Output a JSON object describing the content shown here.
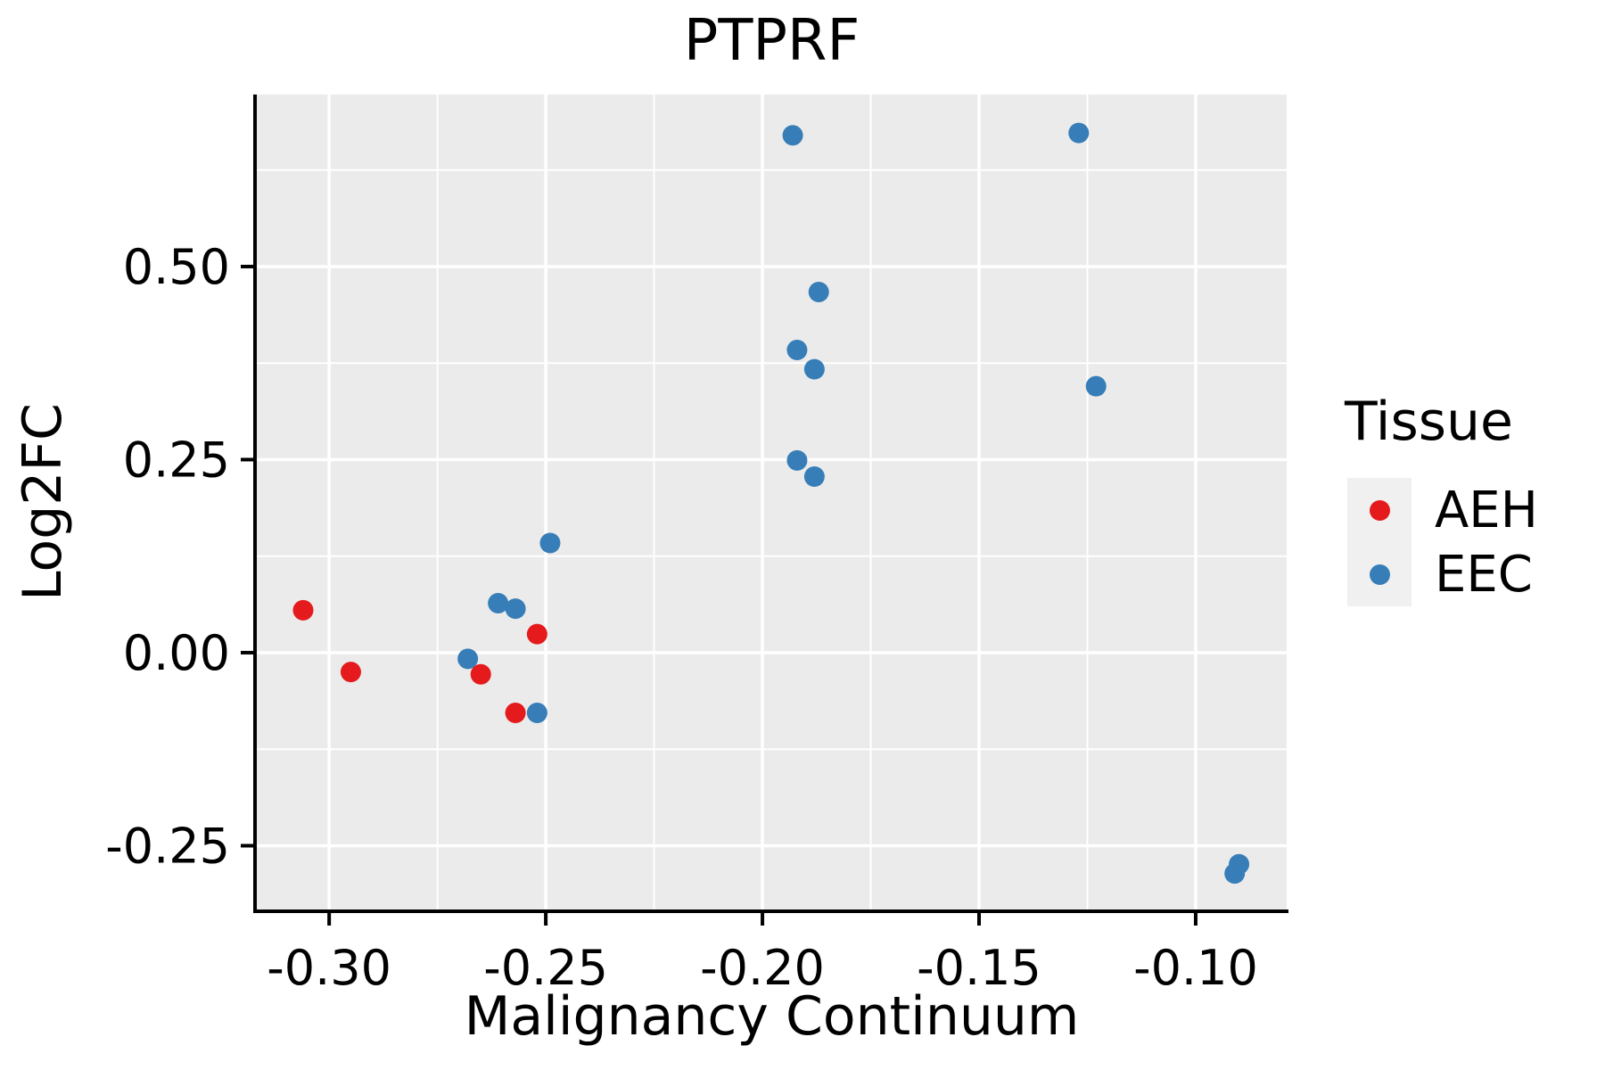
{
  "chart_data": {
    "type": "scatter",
    "title": "PTPRF",
    "xlabel": "Malignancy Continuum",
    "ylabel": "Log2FC",
    "xlim": [
      -0.3167,
      -0.079
    ],
    "ylim": [
      -0.3326,
      0.7228
    ],
    "grid": true,
    "panel_bg": "#EBEBEB",
    "grid_color": "#FFFFFF",
    "axis_color": "#000000",
    "x_ticks": {
      "values": [
        -0.3,
        -0.25,
        -0.2,
        -0.15,
        -0.1
      ],
      "labels": [
        "-0.30",
        "-0.25",
        "-0.20",
        "-0.15",
        "-0.10"
      ]
    },
    "y_ticks": {
      "values": [
        0.5,
        0.25,
        0.0,
        -0.25
      ],
      "labels": [
        "0.50",
        "0.25",
        "0.00",
        "-0.25"
      ]
    },
    "x_minor": [
      -0.275,
      -0.225,
      -0.175,
      -0.125
    ],
    "y_minor": [
      0.625,
      0.375,
      0.125,
      -0.125
    ],
    "legend": {
      "title": "Tissue",
      "position": "right",
      "items": [
        {
          "label": "AEH",
          "color": "#E41A1C"
        },
        {
          "label": "EEC",
          "color": "#377EB8"
        }
      ]
    },
    "series": [
      {
        "name": "EEC",
        "color": "#377EB8",
        "points": [
          [
            -0.193,
            0.67
          ],
          [
            -0.127,
            0.673
          ],
          [
            -0.187,
            0.467
          ],
          [
            -0.192,
            0.392
          ],
          [
            -0.188,
            0.367
          ],
          [
            -0.123,
            0.345
          ],
          [
            -0.192,
            0.249
          ],
          [
            -0.188,
            0.228
          ],
          [
            -0.249,
            0.142
          ],
          [
            -0.261,
            0.064
          ],
          [
            -0.257,
            0.057
          ],
          [
            -0.268,
            -0.008
          ],
          [
            -0.252,
            -0.078
          ],
          [
            -0.09,
            -0.274
          ],
          [
            -0.091,
            -0.286
          ]
        ]
      },
      {
        "name": "AEH",
        "color": "#E41A1C",
        "points": [
          [
            -0.306,
            0.055
          ],
          [
            -0.295,
            -0.025
          ],
          [
            -0.265,
            -0.028
          ],
          [
            -0.252,
            0.024
          ],
          [
            -0.257,
            -0.078
          ]
        ]
      }
    ]
  }
}
